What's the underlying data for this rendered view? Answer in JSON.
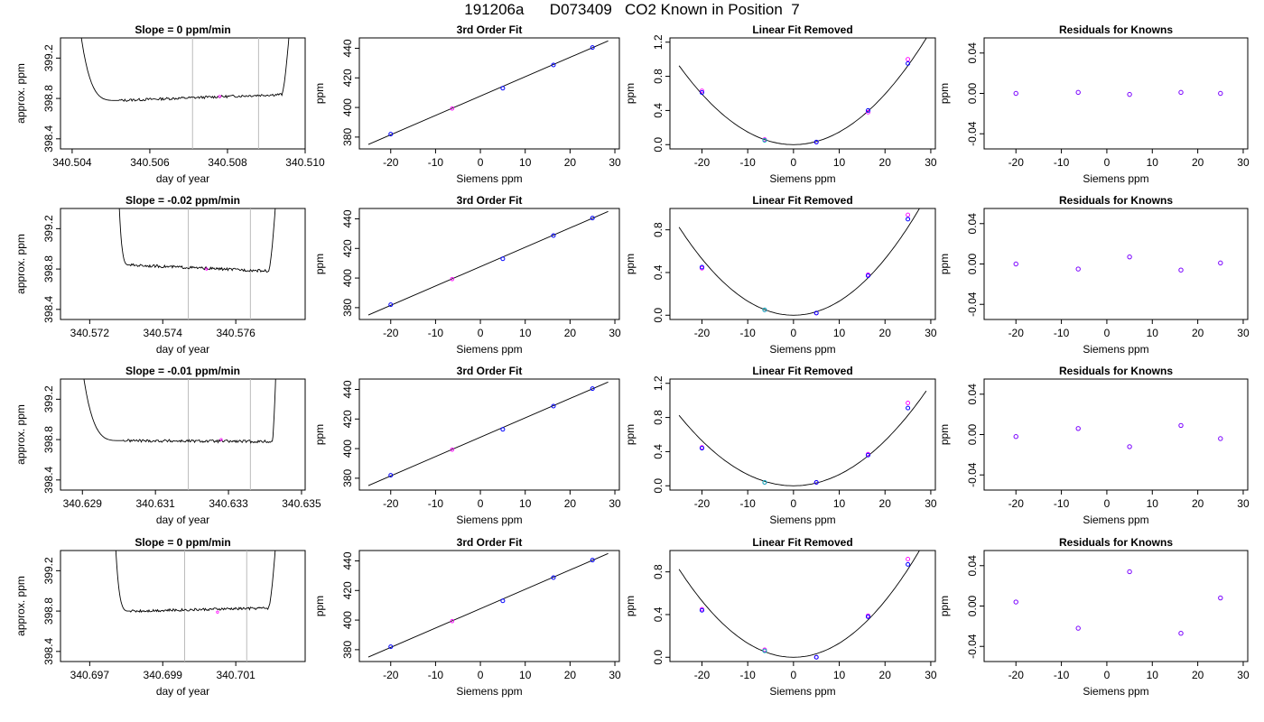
{
  "page_title": "191206a      D073409   CO2 Known in Position  7",
  "colors": {
    "axis": "#000000",
    "vline": "#bbbbbb",
    "blue": "#0000ff",
    "magenta": "#ff00ff",
    "purple": "#7a00ff",
    "cyan": "#00b3b3"
  },
  "chart_data": [
    {
      "type": "line",
      "row": 1,
      "title": "Slope =  0  ppm/min",
      "xlabel": "day of year",
      "ylabel": "approx. ppm",
      "xlim": [
        340.5037,
        340.51
      ],
      "ylim": [
        398.3,
        399.4
      ],
      "xticks": [
        "340.504",
        "340.506",
        "340.508",
        "340.510"
      ],
      "yticks": [
        "398.4",
        "398.8",
        "399.2"
      ],
      "vlines": [
        340.5071,
        340.5088
      ],
      "trace": {
        "x_start": 340.5042,
        "x_drop_end": 340.5052,
        "x_rise_start": 340.5094,
        "x_end": 340.5096,
        "level_start": 398.78,
        "level_end": 398.84,
        "noise": 0.013,
        "top": 399.5
      },
      "marker": {
        "x": 340.5078,
        "y": 398.82
      }
    },
    {
      "type": "scatter",
      "row": 1,
      "title": "3rd Order Fit",
      "xlabel": "Siemens ppm",
      "ylabel": "ppm",
      "xlim": [
        -27,
        31
      ],
      "ylim": [
        372,
        447
      ],
      "xticks": [
        "-20",
        "-10",
        "0",
        "10",
        "20",
        "30"
      ],
      "yticks": [
        "380",
        "400",
        "420",
        "440"
      ],
      "x": [
        -20,
        -6.3,
        5,
        16.3,
        25
      ],
      "y": [
        382,
        399.3,
        413,
        428.7,
        440.5
      ],
      "fit_x": [
        -25,
        28.5
      ],
      "fit_y": [
        375,
        445
      ]
    },
    {
      "type": "scatter",
      "row": 1,
      "title": "Linear Fit Removed",
      "xlabel": "Siemens ppm",
      "ylabel": "ppm",
      "xlim": [
        -27,
        31
      ],
      "ylim": [
        -0.05,
        1.25
      ],
      "xticks": [
        "-20",
        "-10",
        "0",
        "10",
        "20",
        "30"
      ],
      "yticks": [
        "0.0",
        "0.4",
        "0.8",
        "1.2"
      ],
      "x": [
        -20,
        -6.3,
        5,
        16.3,
        25
      ],
      "y": [
        0.61,
        0.05,
        0.03,
        0.4,
        0.95
      ],
      "y_alt": [
        0.63,
        0.06,
        0.03,
        0.38,
        1.0
      ],
      "curve_k": 0.00148
    },
    {
      "type": "scatter",
      "row": 1,
      "title": "Residuals for Knowns",
      "xlabel": "Siemens ppm",
      "ylabel": "ppm",
      "xlim": [
        -27,
        31
      ],
      "ylim": [
        -0.055,
        0.055
      ],
      "xticks": [
        "-20",
        "-10",
        "0",
        "10",
        "20",
        "30"
      ],
      "yticks": [
        "-0.04",
        "0.00",
        "0.04"
      ],
      "x": [
        -20,
        -6.3,
        5,
        16.3,
        25
      ],
      "y": [
        0.0,
        0.001,
        -0.001,
        0.001,
        0.0
      ]
    },
    {
      "type": "line",
      "row": 2,
      "title": "Slope =  -0.02  ppm/min",
      "xlabel": "day of year",
      "ylabel": "approx. ppm",
      "xlim": [
        340.5712,
        340.5779
      ],
      "ylim": [
        398.3,
        399.4
      ],
      "xticks": [
        "340.572",
        "340.574",
        "340.576"
      ],
      "yticks": [
        "398.4",
        "398.8",
        "399.2"
      ],
      "vlines": [
        340.5747,
        340.5764
      ],
      "trace": {
        "x_start": 340.5728,
        "x_drop_end": 340.5731,
        "x_rise_start": 340.5769,
        "x_end": 340.5771,
        "level_start": 398.84,
        "level_end": 398.78,
        "noise": 0.013,
        "top": 399.5
      },
      "marker": {
        "x": 340.5752,
        "y": 398.8
      }
    },
    {
      "type": "scatter",
      "row": 2,
      "title": "3rd Order Fit",
      "xlabel": "Siemens ppm",
      "ylabel": "ppm",
      "xlim": [
        -27,
        31
      ],
      "ylim": [
        372,
        447
      ],
      "xticks": [
        "-20",
        "-10",
        "0",
        "10",
        "20",
        "30"
      ],
      "yticks": [
        "380",
        "400",
        "420",
        "440"
      ],
      "x": [
        -20,
        -6.3,
        5,
        16.3,
        25
      ],
      "y": [
        382,
        399.3,
        413,
        428.7,
        440.5
      ],
      "fit_x": [
        -25,
        28.5
      ],
      "fit_y": [
        375,
        445
      ]
    },
    {
      "type": "scatter",
      "row": 2,
      "title": "Linear Fit Removed",
      "xlabel": "Siemens ppm",
      "ylabel": "ppm",
      "xlim": [
        -27,
        31
      ],
      "ylim": [
        -0.04,
        1.0
      ],
      "xticks": [
        "-20",
        "-10",
        "0",
        "10",
        "20",
        "30"
      ],
      "yticks": [
        "0.0",
        "0.4",
        "0.8"
      ],
      "x": [
        -20,
        -6.3,
        5,
        16.3,
        25
      ],
      "y": [
        0.45,
        0.05,
        0.02,
        0.37,
        0.9
      ],
      "y_alt": [
        0.44,
        0.05,
        0.02,
        0.38,
        0.94
      ],
      "curve_k": 0.00132
    },
    {
      "type": "scatter",
      "row": 2,
      "title": "Residuals for Knowns",
      "xlabel": "Siemens ppm",
      "ylabel": "ppm",
      "xlim": [
        -27,
        31
      ],
      "ylim": [
        -0.055,
        0.055
      ],
      "xticks": [
        "-20",
        "-10",
        "0",
        "10",
        "20",
        "30"
      ],
      "yticks": [
        "-0.04",
        "0.00",
        "0.04"
      ],
      "x": [
        -20,
        -6.3,
        5,
        16.3,
        25
      ],
      "y": [
        0.0,
        -0.005,
        0.007,
        -0.006,
        0.001
      ]
    },
    {
      "type": "line",
      "row": 3,
      "title": "Slope =  -0.01  ppm/min",
      "xlabel": "day of year",
      "ylabel": "approx. ppm",
      "xlim": [
        340.6284,
        340.6351
      ],
      "ylim": [
        398.3,
        399.4
      ],
      "xticks": [
        "340.629",
        "340.631",
        "340.633",
        "340.635"
      ],
      "yticks": [
        "398.4",
        "398.8",
        "399.2"
      ],
      "vlines": [
        340.6319,
        340.6336
      ],
      "trace": {
        "x_start": 340.629,
        "x_drop_end": 340.6301,
        "x_rise_start": 340.6342,
        "x_end": 340.6343,
        "level_start": 398.79,
        "level_end": 398.78,
        "noise": 0.014,
        "top": 399.5
      },
      "marker": {
        "x": 340.6328,
        "y": 398.8
      }
    },
    {
      "type": "scatter",
      "row": 3,
      "title": "3rd Order Fit",
      "xlabel": "Siemens ppm",
      "ylabel": "ppm",
      "xlim": [
        -27,
        31
      ],
      "ylim": [
        372,
        447
      ],
      "xticks": [
        "-20",
        "-10",
        "0",
        "10",
        "20",
        "30"
      ],
      "yticks": [
        "380",
        "400",
        "420",
        "440"
      ],
      "x": [
        -20,
        -6.3,
        5,
        16.3,
        25
      ],
      "y": [
        382,
        399.3,
        413,
        428.7,
        440.5
      ],
      "fit_x": [
        -25,
        28.5
      ],
      "fit_y": [
        375,
        445
      ]
    },
    {
      "type": "scatter",
      "row": 3,
      "title": "Linear Fit Removed",
      "xlabel": "Siemens ppm",
      "ylabel": "ppm",
      "xlim": [
        -27,
        31
      ],
      "ylim": [
        -0.05,
        1.25
      ],
      "xticks": [
        "-20",
        "-10",
        "0",
        "10",
        "20",
        "30"
      ],
      "yticks": [
        "0.0",
        "0.4",
        "0.8",
        "1.2"
      ],
      "x": [
        -20,
        -6.3,
        5,
        16.3,
        25
      ],
      "y": [
        0.44,
        0.04,
        0.04,
        0.36,
        0.91
      ],
      "y_alt": [
        0.45,
        0.04,
        0.04,
        0.37,
        0.97
      ],
      "curve_k": 0.00132
    },
    {
      "type": "scatter",
      "row": 3,
      "title": "Residuals for Knowns",
      "xlabel": "Siemens ppm",
      "ylabel": "ppm",
      "xlim": [
        -27,
        31
      ],
      "ylim": [
        -0.055,
        0.055
      ],
      "xticks": [
        "-20",
        "-10",
        "0",
        "10",
        "20",
        "30"
      ],
      "yticks": [
        "-0.04",
        "0.00",
        "0.04"
      ],
      "x": [
        -20,
        -6.3,
        5,
        16.3,
        25
      ],
      "y": [
        -0.002,
        0.006,
        -0.012,
        0.009,
        -0.004
      ]
    },
    {
      "type": "line",
      "row": 4,
      "title": "Slope =  0  ppm/min",
      "xlabel": "day of year",
      "ylabel": "approx. ppm",
      "xlim": [
        340.6962,
        340.7029
      ],
      "ylim": [
        398.3,
        399.4
      ],
      "xticks": [
        "340.697",
        "340.699",
        "340.701"
      ],
      "yticks": [
        "398.4",
        "398.8",
        "399.2"
      ],
      "vlines": [
        340.6996,
        340.7013
      ],
      "trace": {
        "x_start": 340.6977,
        "x_drop_end": 340.6981,
        "x_rise_start": 340.7019,
        "x_end": 340.7021,
        "level_start": 398.8,
        "level_end": 398.83,
        "noise": 0.013,
        "top": 399.5
      },
      "marker": {
        "x": 340.7005,
        "y": 398.79
      }
    },
    {
      "type": "scatter",
      "row": 4,
      "title": "3rd Order Fit",
      "xlabel": "Siemens ppm",
      "ylabel": "ppm",
      "xlim": [
        -27,
        31
      ],
      "ylim": [
        372,
        447
      ],
      "xticks": [
        "-20",
        "-10",
        "0",
        "10",
        "20",
        "30"
      ],
      "yticks": [
        "380",
        "400",
        "420",
        "440"
      ],
      "x": [
        -20,
        -6.3,
        5,
        16.3,
        25
      ],
      "y": [
        382,
        399.3,
        413,
        428.7,
        440.5
      ],
      "fit_x": [
        -25,
        28.5
      ],
      "fit_y": [
        375,
        445
      ]
    },
    {
      "type": "scatter",
      "row": 4,
      "title": "Linear Fit Removed",
      "xlabel": "Siemens ppm",
      "ylabel": "ppm",
      "xlim": [
        -27,
        31
      ],
      "ylim": [
        -0.04,
        1.0
      ],
      "xticks": [
        "-20",
        "-10",
        "0",
        "10",
        "20",
        "30"
      ],
      "yticks": [
        "0.0",
        "0.4",
        "0.8"
      ],
      "x": [
        -20,
        -6.3,
        5,
        16.3,
        25
      ],
      "y": [
        0.44,
        0.06,
        0.0,
        0.38,
        0.87
      ],
      "y_alt": [
        0.45,
        0.07,
        0.0,
        0.39,
        0.92
      ],
      "curve_k": 0.00132
    },
    {
      "type": "scatter",
      "row": 4,
      "title": "Residuals for Knowns",
      "xlabel": "Siemens ppm",
      "ylabel": "ppm",
      "xlim": [
        -27,
        31
      ],
      "ylim": [
        -0.055,
        0.055
      ],
      "xticks": [
        "-20",
        "-10",
        "0",
        "10",
        "20",
        "30"
      ],
      "yticks": [
        "-0.04",
        "0.00",
        "0.04"
      ],
      "x": [
        -20,
        -6.3,
        5,
        16.3,
        25
      ],
      "y": [
        0.004,
        -0.022,
        0.034,
        -0.027,
        0.008
      ]
    }
  ]
}
